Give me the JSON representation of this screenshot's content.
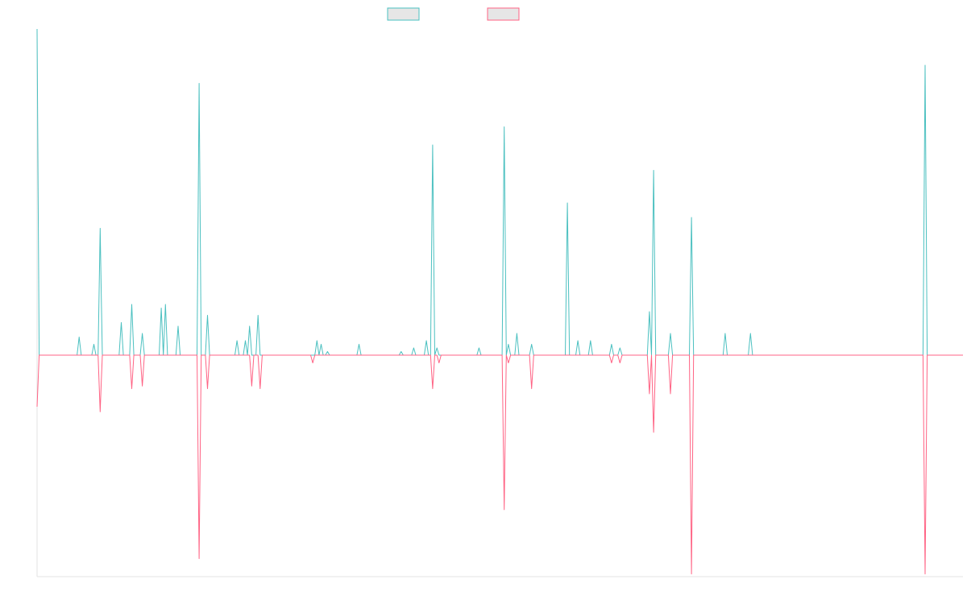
{
  "chart_data": {
    "type": "line",
    "title": "",
    "xlabel": "",
    "ylabel": "",
    "grid": false,
    "legend_position": "top-center",
    "x_range": [
      0,
      220
    ],
    "ylim": [
      -0.76,
      1.0
    ],
    "series": [
      {
        "color": "#4bc0c0",
        "fill": "#e6e6e6",
        "baseline": 0.1,
        "peaks": [
          [
            0,
            1.0
          ],
          [
            10,
            0.15
          ],
          [
            13.5,
            0.13
          ],
          [
            15,
            0.45
          ],
          [
            20,
            0.19
          ],
          [
            22.5,
            0.24
          ],
          [
            25,
            0.16
          ],
          [
            29.5,
            0.23
          ],
          [
            30.5,
            0.24
          ],
          [
            33.5,
            0.18
          ],
          [
            38.5,
            0.85
          ],
          [
            40.5,
            0.21
          ],
          [
            47.5,
            0.14
          ],
          [
            49.5,
            0.14
          ],
          [
            50.5,
            0.18
          ],
          [
            52.5,
            0.21
          ],
          [
            66.5,
            0.14
          ],
          [
            67.5,
            0.13
          ],
          [
            69,
            0.11
          ],
          [
            76.5,
            0.13
          ],
          [
            86.5,
            0.11
          ],
          [
            89.5,
            0.12
          ],
          [
            92.5,
            0.14
          ],
          [
            94,
            0.68
          ],
          [
            95,
            0.12
          ],
          [
            105,
            0.12
          ],
          [
            111,
            0.73
          ],
          [
            112,
            0.13
          ],
          [
            114,
            0.16
          ],
          [
            117.5,
            0.13
          ],
          [
            126,
            0.52
          ],
          [
            128.5,
            0.14
          ],
          [
            131.5,
            0.14
          ],
          [
            136.5,
            0.13
          ],
          [
            138.5,
            0.12
          ],
          [
            145.5,
            0.22
          ],
          [
            146.5,
            0.61
          ],
          [
            150.5,
            0.16
          ],
          [
            155.5,
            0.48
          ],
          [
            163.5,
            0.16
          ],
          [
            169.5,
            0.16
          ],
          [
            211,
            0.9
          ]
        ]
      },
      {
        "color": "#ff6384",
        "fill": "#e6e6e6",
        "baseline": 0.1,
        "peaks": [
          [
            0,
            -0.1
          ],
          [
            15,
            -0.12
          ],
          [
            22.5,
            -0.03
          ],
          [
            25,
            -0.02
          ],
          [
            38.5,
            -0.69
          ],
          [
            40.5,
            -0.03
          ],
          [
            51,
            -0.02
          ],
          [
            53,
            -0.03
          ],
          [
            65.5,
            0.07
          ],
          [
            94,
            -0.03
          ],
          [
            95.5,
            0.07
          ],
          [
            111,
            -0.5
          ],
          [
            112,
            0.07
          ],
          [
            117.5,
            -0.03
          ],
          [
            136.5,
            0.07
          ],
          [
            138.5,
            0.07
          ],
          [
            145.5,
            -0.05
          ],
          [
            146.5,
            -0.2
          ],
          [
            150.5,
            -0.05
          ],
          [
            155.5,
            -0.75
          ],
          [
            211,
            -0.75
          ]
        ]
      }
    ]
  }
}
